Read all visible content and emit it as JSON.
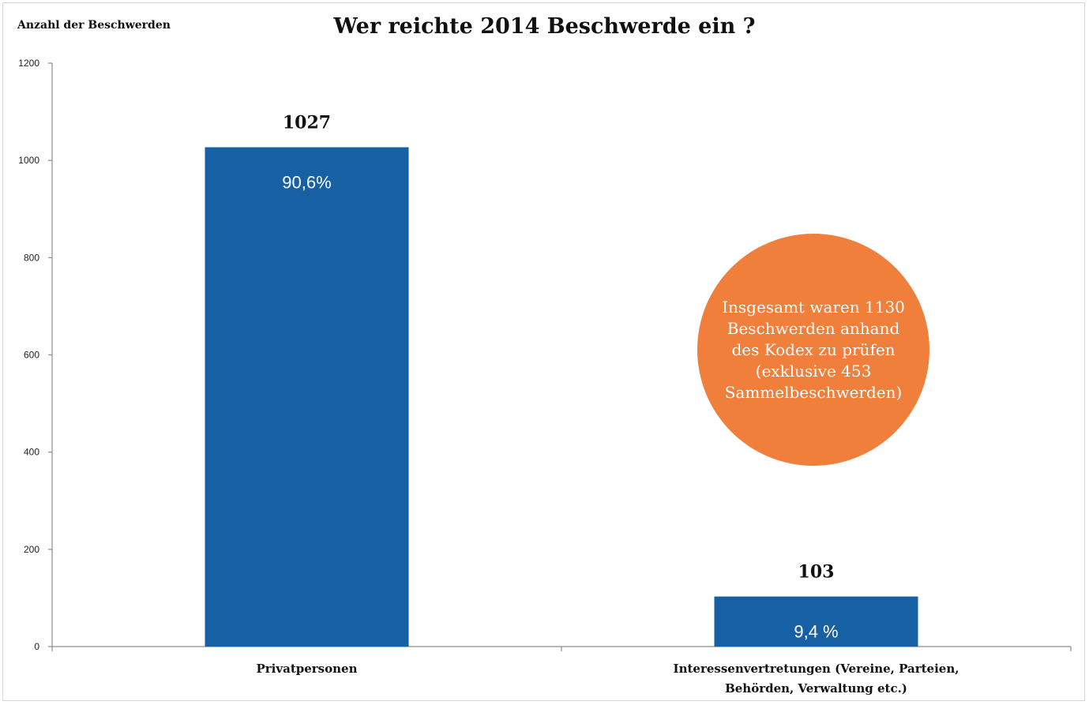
{
  "chart_data": {
    "type": "bar",
    "title": "Wer reichte 2014 Beschwerde ein ?",
    "ylabel": "Anzahl der  Beschwerden",
    "xlabel": "",
    "ylim": [
      0,
      1200
    ],
    "yticks": [
      0,
      200,
      400,
      600,
      800,
      1000,
      1200
    ],
    "grid": false,
    "categories": [
      [
        "Privatpersonen"
      ],
      [
        "Interessenvertretungen (Vereine, Parteien,",
        "Behörden, Verwaltung etc.)"
      ]
    ],
    "values": [
      1027,
      103
    ],
    "value_labels": [
      "1027",
      "103"
    ],
    "percent_labels": [
      "90,6%",
      "9,4 %"
    ],
    "colors": {
      "bar": "#1660a3",
      "bubble": "#f07f3c",
      "bar_text": "#ffffff"
    },
    "annotation": "Insgesamt waren 1130\nBeschwerden anhand\ndes Kodex zu prüfen\n(exklusive 453\nSammelbeschwerden)"
  }
}
